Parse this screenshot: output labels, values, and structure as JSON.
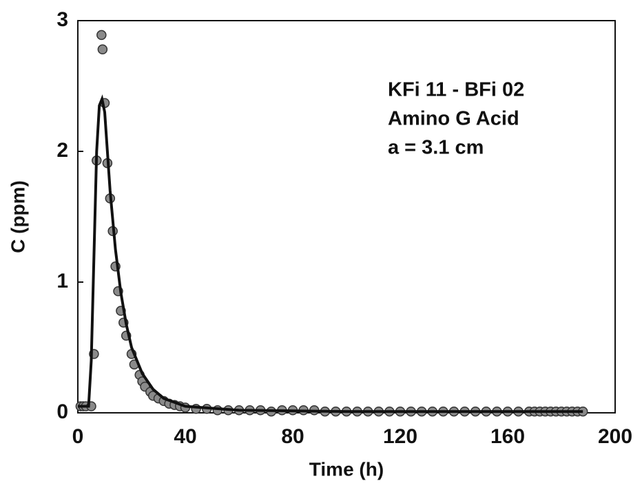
{
  "chart_data": {
    "type": "scatter",
    "xlabel": "Time (h)",
    "ylabel": "C  (ppm)",
    "annotations": [
      "KFi 11 - BFi 02",
      "Amino G Acid",
      "a = 3.1 cm"
    ],
    "xlim": [
      0,
      200
    ],
    "ylim": [
      0,
      3
    ],
    "xticks": [
      0,
      40,
      80,
      120,
      160,
      200
    ],
    "yticks": [
      0,
      1,
      2,
      3
    ],
    "series": [
      {
        "type": "scatter",
        "color": "#8a8a8a",
        "x": [
          1,
          2,
          3,
          5,
          6,
          7,
          8.8,
          9.2,
          10,
          11,
          12,
          13,
          14,
          15,
          16,
          17,
          18,
          20,
          21,
          23,
          24,
          25,
          27,
          28,
          30,
          32,
          34,
          36,
          38,
          40,
          44,
          48,
          52,
          56,
          60,
          64,
          68,
          72,
          76,
          80,
          84,
          88,
          92,
          96,
          100,
          104,
          108,
          112,
          116,
          120,
          124,
          128,
          132,
          136,
          140,
          144,
          148,
          152,
          156,
          160,
          164,
          168,
          170,
          172,
          174,
          176,
          178,
          180,
          182,
          184,
          186,
          188
        ],
        "values": [
          0.05,
          0.05,
          0.05,
          0.05,
          0.45,
          1.93,
          2.89,
          2.78,
          2.37,
          1.91,
          1.64,
          1.39,
          1.12,
          0.93,
          0.78,
          0.69,
          0.59,
          0.45,
          0.37,
          0.29,
          0.24,
          0.2,
          0.16,
          0.13,
          0.11,
          0.09,
          0.07,
          0.06,
          0.05,
          0.04,
          0.03,
          0.03,
          0.02,
          0.02,
          0.02,
          0.02,
          0.02,
          0.01,
          0.02,
          0.02,
          0.02,
          0.02,
          0.01,
          0.01,
          0.01,
          0.01,
          0.01,
          0.01,
          0.01,
          0.01,
          0.01,
          0.01,
          0.01,
          0.01,
          0.01,
          0.01,
          0.01,
          0.01,
          0.01,
          0.01,
          0.01,
          0.01,
          0.01,
          0.01,
          0.01,
          0.01,
          0.01,
          0.01,
          0.01,
          0.01,
          0.01,
          0.01
        ]
      },
      {
        "type": "line",
        "color": "#111111",
        "x": [
          0,
          4,
          5,
          6,
          7,
          8,
          9,
          10,
          11,
          12,
          14,
          16,
          18,
          20,
          24,
          28,
          32,
          40,
          60,
          100,
          188
        ],
        "values": [
          0.05,
          0.05,
          0.4,
          1.2,
          2.0,
          2.35,
          2.4,
          2.3,
          2.0,
          1.7,
          1.25,
          0.92,
          0.68,
          0.5,
          0.3,
          0.18,
          0.11,
          0.05,
          0.02,
          0.01,
          0.01
        ]
      }
    ]
  }
}
